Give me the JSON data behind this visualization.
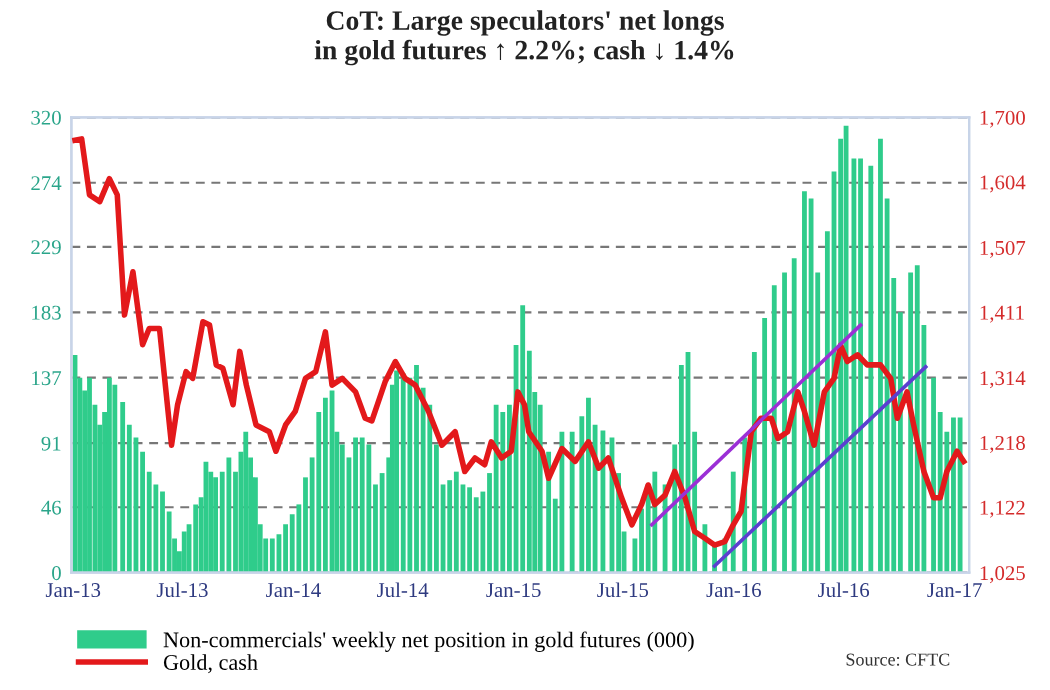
{
  "chart_data": {
    "type": "bar",
    "title": "CoT: Large speculators' net longs\nin gold futures ↑ 2.2%; cash ↓ 1.4%",
    "xlim": [
      "2012-12-29",
      "2017-01-25"
    ],
    "xticks": [
      {
        "value": "2013-01-01",
        "label": "Jan-13"
      },
      {
        "value": "2013-07-01",
        "label": "Jul-13"
      },
      {
        "value": "2014-01-01",
        "label": "Jan-14"
      },
      {
        "value": "2014-07-01",
        "label": "Jul-14"
      },
      {
        "value": "2015-01-01",
        "label": "Jan-15"
      },
      {
        "value": "2015-07-01",
        "label": "Jul-15"
      },
      {
        "value": "2016-01-01",
        "label": "Jan-16"
      },
      {
        "value": "2016-07-01",
        "label": "Jul-16"
      },
      {
        "value": "2017-01-01",
        "label": "Jan-17"
      }
    ],
    "ylim": [
      0,
      320
    ],
    "yticks": [
      0,
      46,
      91,
      137,
      183,
      229,
      274,
      320
    ],
    "y2lim": [
      1025,
      1700
    ],
    "y2ticks": [
      {
        "value": 1025,
        "label": "1,025"
      },
      {
        "value": 1122,
        "label": "1,122"
      },
      {
        "value": 1218,
        "label": "1,218"
      },
      {
        "value": 1314,
        "label": "1,314"
      },
      {
        "value": 1411,
        "label": "1,411"
      },
      {
        "value": 1507,
        "label": "1,507"
      },
      {
        "value": 1604,
        "label": "1,604"
      },
      {
        "value": 1700,
        "label": "1,700"
      }
    ],
    "grid": "y",
    "legend": "bottom left",
    "annotations": [
      "Source: CFTC"
    ],
    "series": [
      {
        "name": "Non-commercials' weekly net position in gold futures (000)",
        "color": "#2fcc8b",
        "x": [
          "2013-01-04",
          "2013-01-12",
          "2013-01-20",
          "2013-01-28",
          "2013-02-06",
          "2013-02-14",
          "2013-02-22",
          "2013-03-02",
          "2013-03-11",
          "2013-03-24",
          "2013-04-04",
          "2013-04-15",
          "2013-04-26",
          "2013-05-07",
          "2013-05-18",
          "2013-05-29",
          "2013-06-09",
          "2013-06-18",
          "2013-06-26",
          "2013-07-04",
          "2013-07-12",
          "2013-07-23",
          "2013-08-01",
          "2013-08-09",
          "2013-08-17",
          "2013-08-25",
          "2013-09-05",
          "2013-09-16",
          "2013-09-27",
          "2013-10-06",
          "2013-10-14",
          "2013-10-22",
          "2013-10-30",
          "2013-11-07",
          "2013-11-16",
          "2013-11-27",
          "2013-12-08",
          "2013-12-19",
          "2013-12-30",
          "2014-01-10",
          "2014-01-21",
          "2014-02-01",
          "2014-02-12",
          "2014-02-23",
          "2014-03-06",
          "2014-03-14",
          "2014-03-23",
          "2014-04-03",
          "2014-04-14",
          "2014-04-25",
          "2014-05-06",
          "2014-05-17",
          "2014-05-28",
          "2014-06-08",
          "2014-06-14",
          "2014-06-21",
          "2014-07-02",
          "2014-07-13",
          "2014-07-24",
          "2014-08-04",
          "2014-08-15",
          "2014-08-26",
          "2014-09-06",
          "2014-09-17",
          "2014-09-28",
          "2014-10-09",
          "2014-10-20",
          "2014-10-31",
          "2014-11-11",
          "2014-11-22",
          "2014-12-03",
          "2014-12-14",
          "2014-12-25",
          "2015-01-05",
          "2015-01-16",
          "2015-01-27",
          "2015-02-05",
          "2015-02-14",
          "2015-02-28",
          "2015-03-11",
          "2015-03-22",
          "2015-04-08",
          "2015-04-24",
          "2015-05-05",
          "2015-05-16",
          "2015-05-29",
          "2015-06-13",
          "2015-06-24",
          "2015-07-03",
          "2015-07-21",
          "2015-08-01",
          "2015-08-12",
          "2015-08-23",
          "2015-09-09",
          "2015-09-25",
          "2015-10-06",
          "2015-10-17",
          "2015-10-28",
          "2015-11-14",
          "2015-11-30",
          "2015-12-17",
          "2015-12-31",
          "2016-01-19",
          "2016-02-04",
          "2016-02-21",
          "2016-03-08",
          "2016-03-25",
          "2016-04-10",
          "2016-04-27",
          "2016-05-08",
          "2016-05-19",
          "2016-06-04",
          "2016-06-15",
          "2016-06-26",
          "2016-07-05",
          "2016-07-18",
          "2016-07-29",
          "2016-08-15",
          "2016-08-31",
          "2016-09-11",
          "2016-09-22",
          "2016-10-03",
          "2016-10-20",
          "2016-10-31",
          "2016-11-11",
          "2016-11-27",
          "2016-12-08",
          "2016-12-19",
          "2016-12-30",
          "2017-01-10"
        ],
        "values": [
          153,
          137,
          128,
          137,
          118,
          104,
          113,
          137,
          132,
          120,
          104,
          95,
          85,
          71,
          62,
          57,
          43,
          24,
          15,
          29,
          34,
          48,
          53,
          78,
          71,
          67,
          71,
          81,
          71,
          85,
          99,
          81,
          67,
          34,
          24,
          24,
          27,
          34,
          41,
          48,
          67,
          81,
          113,
          123,
          128,
          99,
          90,
          81,
          95,
          95,
          90,
          62,
          70,
          81,
          132,
          142,
          140,
          137,
          146,
          130,
          118,
          90,
          62,
          65,
          71,
          62,
          60,
          53,
          57,
          70,
          118,
          113,
          118,
          160,
          188,
          156,
          127,
          118,
          85,
          52,
          99,
          99,
          110,
          123,
          104,
          100,
          95,
          70,
          29,
          24,
          45,
          62,
          71,
          62,
          90,
          146,
          155,
          99,
          34,
          20,
          24,
          71,
          95,
          155,
          179,
          202,
          211,
          221,
          268,
          263,
          211,
          240,
          282,
          305,
          314,
          291,
          291,
          286,
          305,
          263,
          207,
          183,
          211,
          216,
          174,
          137,
          113,
          99,
          109,
          109
        ]
      },
      {
        "name": "Gold, cash",
        "type": "line",
        "axis": "y2",
        "color": "#e3191b",
        "x": [
          "2013-01-04",
          "2013-01-15",
          "2013-01-28",
          "2013-02-14",
          "2013-03-02",
          "2013-03-15",
          "2013-03-24",
          "2013-03-27",
          "2013-04-10",
          "2013-04-26",
          "2013-05-07",
          "2013-05-24",
          "2013-06-13",
          "2013-06-23",
          "2013-07-07",
          "2013-07-18",
          "2013-08-04",
          "2013-08-15",
          "2013-08-26",
          "2013-09-06",
          "2013-09-23",
          "2013-10-04",
          "2013-10-15",
          "2013-10-31",
          "2013-11-22",
          "2013-12-03",
          "2013-12-19",
          "2014-01-04",
          "2014-01-21",
          "2014-02-07",
          "2014-02-23",
          "2014-03-06",
          "2014-03-23",
          "2014-04-14",
          "2014-04-30",
          "2014-05-11",
          "2014-06-02",
          "2014-06-19",
          "2014-07-05",
          "2014-07-22",
          "2014-08-13",
          "2014-09-04",
          "2014-09-26",
          "2014-10-12",
          "2014-10-29",
          "2014-11-14",
          "2014-11-25",
          "2014-12-12",
          "2014-12-28",
          "2015-01-08",
          "2015-01-19",
          "2015-01-26",
          "2015-02-17",
          "2015-02-28",
          "2015-03-22",
          "2015-04-13",
          "2015-05-05",
          "2015-05-22",
          "2015-06-07",
          "2015-06-29",
          "2015-07-16",
          "2015-08-01",
          "2015-08-12",
          "2015-08-23",
          "2015-09-09",
          "2015-09-25",
          "2015-10-12",
          "2015-10-28",
          "2015-11-14",
          "2015-11-30",
          "2015-12-17",
          "2015-12-31",
          "2016-01-13",
          "2016-01-30",
          "2016-02-15",
          "2016-03-03",
          "2016-03-14",
          "2016-03-30",
          "2016-04-16",
          "2016-04-27",
          "2016-05-13",
          "2016-05-30",
          "2016-06-15",
          "2016-06-26",
          "2016-07-07",
          "2016-07-24",
          "2016-08-09",
          "2016-08-31",
          "2016-09-17",
          "2016-09-28",
          "2016-10-14",
          "2016-10-25",
          "2016-11-11",
          "2016-11-27",
          "2016-12-08",
          "2016-12-19",
          "2017-01-05",
          "2017-01-16"
        ],
        "values": [
          1666,
          1668,
          1585,
          1575,
          1609,
          1585,
          1452,
          1407,
          1471,
          1363,
          1387,
          1387,
          1214,
          1274,
          1323,
          1313,
          1397,
          1392,
          1333,
          1328,
          1274,
          1353,
          1303,
          1244,
          1234,
          1205,
          1244,
          1264,
          1313,
          1323,
          1382,
          1303,
          1313,
          1293,
          1254,
          1250,
          1308,
          1338,
          1313,
          1303,
          1264,
          1214,
          1234,
          1175,
          1195,
          1185,
          1219,
          1195,
          1205,
          1293,
          1274,
          1234,
          1205,
          1165,
          1209,
          1190,
          1219,
          1180,
          1195,
          1136,
          1096,
          1126,
          1155,
          1126,
          1140,
          1175,
          1136,
          1086,
          1076,
          1066,
          1071,
          1096,
          1116,
          1234,
          1254,
          1254,
          1224,
          1234,
          1293,
          1264,
          1214,
          1293,
          1313,
          1362,
          1338,
          1348,
          1333,
          1333,
          1313,
          1254,
          1293,
          1244,
          1175,
          1136,
          1136,
          1175,
          1205,
          1190
        ]
      },
      {
        "type": "line",
        "axis": "y2",
        "color": "#9b2fd6",
        "x": [
          "2015-08-18",
          "2016-07-29"
        ],
        "values": [
          1096,
          1392
        ]
      },
      {
        "type": "line",
        "axis": "y2",
        "color": "#5b3fd0",
        "x": [
          "2015-11-30",
          "2016-11-14"
        ],
        "values": [
          1035,
          1330
        ]
      }
    ]
  }
}
